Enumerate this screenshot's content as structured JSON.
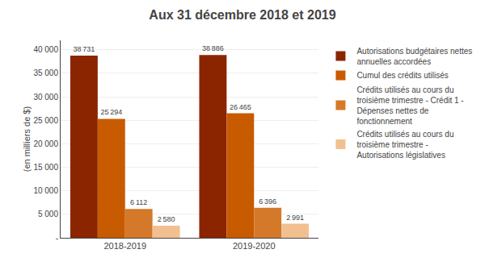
{
  "chart_data": {
    "type": "bar",
    "title": "Aux 31 décembre 2018 et 2019",
    "ylabel": "(en milliers de $)",
    "categories": [
      "2018-2019",
      "2019-2020"
    ],
    "series": [
      {
        "name": "Autorisations budgétaires nettes\nannuelles accordées",
        "color": "#8B2500",
        "values": [
          38731,
          38886
        ],
        "value_labels": [
          "38 731",
          "38 886"
        ]
      },
      {
        "name": "Cumul des crédits utilisés",
        "color": "#C85A00",
        "values": [
          25294,
          26465
        ],
        "value_labels": [
          "25 294",
          "26 465"
        ]
      },
      {
        "name": "Crédits utilisés au cours du\ntroisième trimestre - Crédit 1 -\nDépenses nettes de\nfonctionnement",
        "color": "#D4792A",
        "values": [
          6112,
          6396
        ],
        "value_labels": [
          "6 112",
          "6 396"
        ]
      },
      {
        "name": "Crédits utilisés au cours du\ntroisième trimestre -\nAutorisations législatives",
        "color": "#F2C090",
        "values": [
          2580,
          2991
        ],
        "value_labels": [
          "2 580",
          "2 991"
        ]
      }
    ],
    "ylim": [
      0,
      42000
    ],
    "yticks": [
      {
        "value": 0,
        "label": "-"
      },
      {
        "value": 5000,
        "label": "5 000"
      },
      {
        "value": 10000,
        "label": "10 000"
      },
      {
        "value": 15000,
        "label": "15 000"
      },
      {
        "value": 20000,
        "label": "20 000"
      },
      {
        "value": 25000,
        "label": "25 000"
      },
      {
        "value": 30000,
        "label": "30 000"
      },
      {
        "value": 35000,
        "label": "35 000"
      },
      {
        "value": 40000,
        "label": "40 000"
      }
    ],
    "grid": true,
    "legend": "right",
    "data_labels": true
  }
}
